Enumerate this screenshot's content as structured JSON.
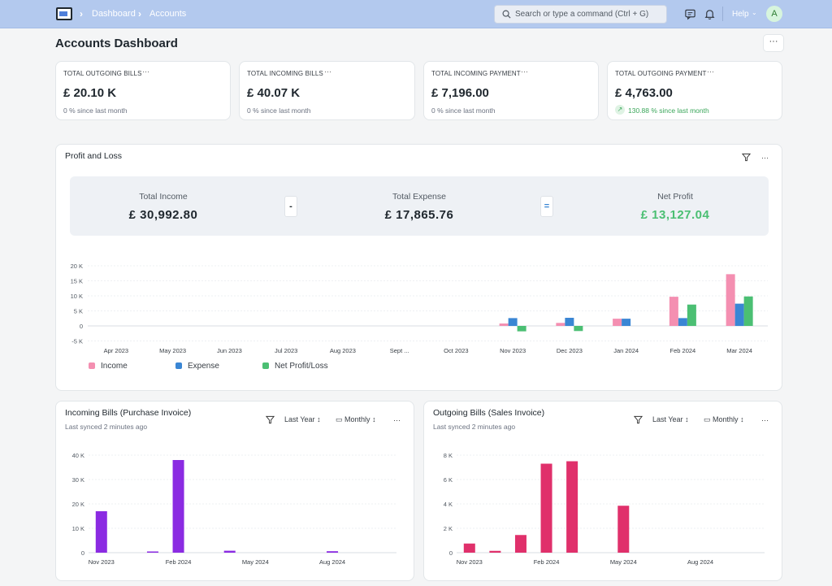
{
  "navbar": {
    "breadcrumbs": [
      "Dashboard",
      "Accounts"
    ],
    "search_placeholder": "Search or type a command (Ctrl + G)",
    "help_label": "Help",
    "avatar_initial": "A"
  },
  "page": {
    "title": "Accounts Dashboard",
    "menu_label": "···"
  },
  "number_cards": [
    {
      "title": "TOTAL OUTGOING BILLS",
      "value": "£ 20.10 K",
      "sub": "0 % since last month"
    },
    {
      "title": "TOTAL INCOMING BILLS",
      "value": "£ 40.07 K",
      "sub": "0 % since last month"
    },
    {
      "title": "TOTAL INCOMING PAYMENT",
      "value": "£ 7,196.00",
      "sub": "0 % since last month"
    },
    {
      "title": "TOTAL OUTGOING PAYMENT",
      "value": "£ 4,763.00",
      "sub": "130.88 % since last month",
      "trend": "up"
    }
  ],
  "profit_loss": {
    "title": "Profit and Loss",
    "income_label": "Total Income",
    "income_value": "£ 30,992.80",
    "minus": "-",
    "expense_label": "Total Expense",
    "expense_value": "£ 17,865.76",
    "equals": "=",
    "net_label": "Net Profit",
    "net_value": "£ 13,127.04",
    "legend": [
      "Income",
      "Expense",
      "Net Profit/Loss"
    ]
  },
  "incoming_bills": {
    "title": "Incoming Bills (Purchase Invoice)",
    "synced": "Last synced 2 minutes ago",
    "period": "Last Year",
    "interval": "Monthly"
  },
  "outgoing_bills": {
    "title": "Outgoing Bills (Sales Invoice)",
    "synced": "Last synced 2 minutes ago",
    "period": "Last Year",
    "interval": "Monthly"
  },
  "colors": {
    "income": "#f48fb1",
    "expense": "#3a86d4",
    "net": "#4bbf73",
    "purchase": "#8b2be2",
    "sales": "#e0306b",
    "positive": "#3aa65a"
  },
  "chart_data": [
    {
      "type": "bar",
      "categories": [
        "Apr 2023",
        "May 2023",
        "Jun 2023",
        "Jul 2023",
        "Aug 2023",
        "Sept ...",
        "Oct 2023",
        "Nov 2023",
        "Dec 2023",
        "Jan 2024",
        "Feb 2024",
        "Mar 2024"
      ],
      "ytick_labels": [
        "20 K",
        "15 K",
        "10 K",
        "5 K",
        "0",
        "-5 K"
      ],
      "yticks": [
        20000,
        15000,
        10000,
        5000,
        0,
        -5000
      ],
      "ylim": [
        -5000,
        20000
      ],
      "series": [
        {
          "name": "Income",
          "values": [
            0,
            0,
            0,
            0,
            0,
            0,
            0,
            800,
            1000,
            2400,
            9700,
            17200
          ]
        },
        {
          "name": "Expense",
          "values": [
            0,
            0,
            0,
            0,
            0,
            0,
            0,
            2600,
            2700,
            2400,
            2600,
            7400
          ]
        },
        {
          "name": "Net Profit/Loss",
          "values": [
            0,
            0,
            0,
            0,
            0,
            0,
            0,
            -1800,
            -1700,
            0,
            7100,
            9800
          ]
        }
      ],
      "legend_position": "bottom-left",
      "grid": true
    },
    {
      "type": "bar",
      "x_labels": [
        "Nov 2023",
        "Feb 2024",
        "May 2024",
        "Aug 2024"
      ],
      "x_label_index": [
        0,
        3,
        6,
        9
      ],
      "ytick_labels": [
        "40 K",
        "30 K",
        "20 K",
        "10 K",
        "0"
      ],
      "yticks": [
        40000,
        30000,
        20000,
        10000,
        0
      ],
      "ylim": [
        0,
        40000
      ],
      "values": [
        17000,
        0,
        500,
        38000,
        0,
        800,
        0,
        0,
        0,
        600,
        0,
        0
      ],
      "grid": true
    },
    {
      "type": "bar",
      "x_labels": [
        "Nov 2023",
        "Feb 2024",
        "May 2024",
        "Aug 2024"
      ],
      "x_label_index": [
        0,
        3,
        6,
        9
      ],
      "ytick_labels": [
        "8 K",
        "6 K",
        "4 K",
        "2 K",
        "0"
      ],
      "yticks": [
        8000,
        6000,
        4000,
        2000,
        0
      ],
      "ylim": [
        0,
        8000
      ],
      "values": [
        750,
        150,
        1450,
        7300,
        7500,
        0,
        3850,
        0,
        0,
        0,
        0,
        0
      ],
      "grid": true
    }
  ]
}
